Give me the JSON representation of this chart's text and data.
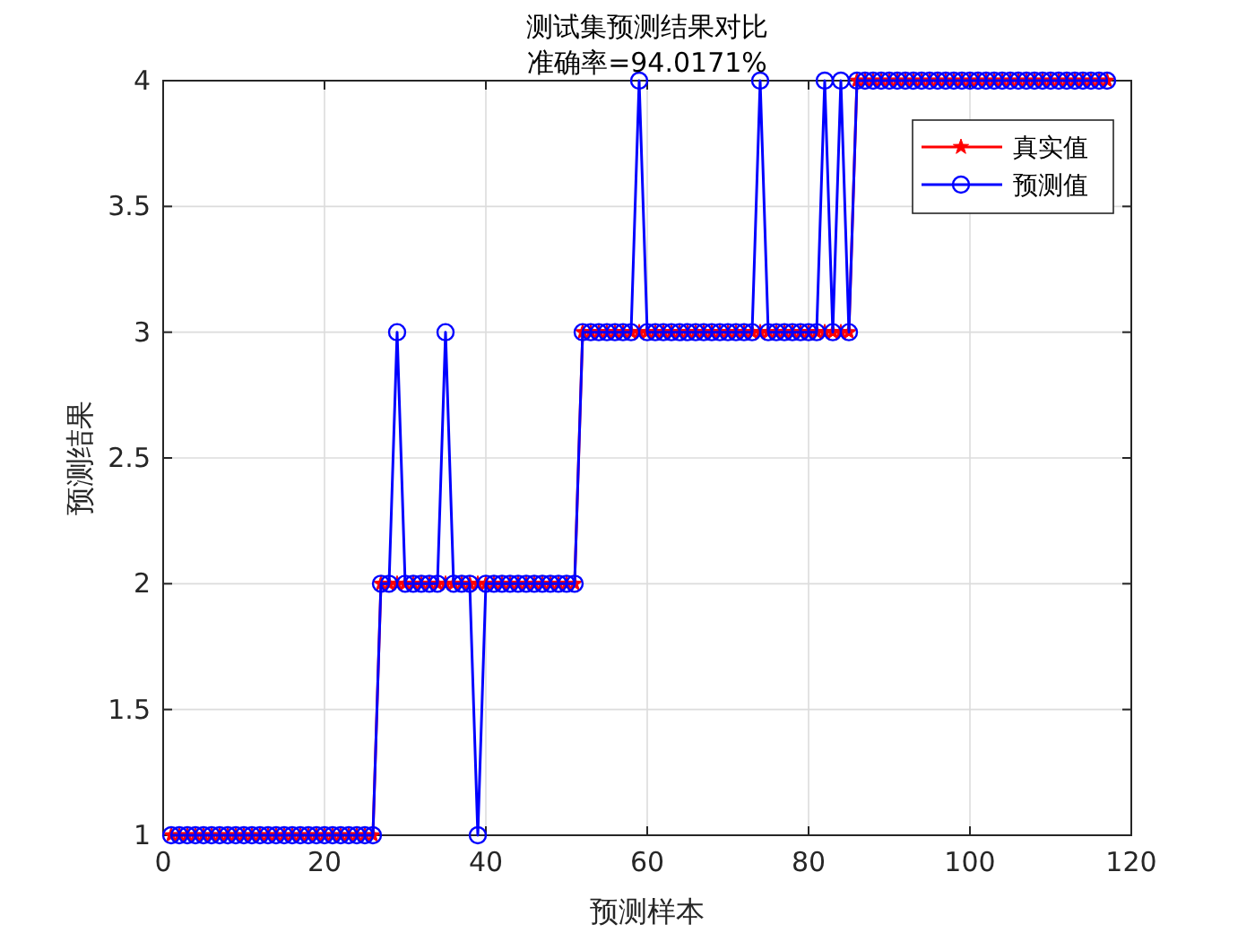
{
  "chart_data": {
    "type": "line",
    "title": "测试集预测结果对比",
    "subtitle": "准确率=94.0171%",
    "xlabel": "预测样本",
    "ylabel": "预测结果",
    "x": [
      1,
      2,
      3,
      4,
      5,
      6,
      7,
      8,
      9,
      10,
      11,
      12,
      13,
      14,
      15,
      16,
      17,
      18,
      19,
      20,
      21,
      22,
      23,
      24,
      25,
      26,
      27,
      28,
      29,
      30,
      31,
      32,
      33,
      34,
      35,
      36,
      37,
      38,
      39,
      40,
      41,
      42,
      43,
      44,
      45,
      46,
      47,
      48,
      49,
      50,
      51,
      52,
      53,
      54,
      55,
      56,
      57,
      58,
      59,
      60,
      61,
      62,
      63,
      64,
      65,
      66,
      67,
      68,
      69,
      70,
      71,
      72,
      73,
      74,
      75,
      76,
      77,
      78,
      79,
      80,
      81,
      82,
      83,
      84,
      85,
      86,
      87,
      88,
      89,
      90,
      91,
      92,
      93,
      94,
      95,
      96,
      97,
      98,
      99,
      100,
      101,
      102,
      103,
      104,
      105,
      106,
      107,
      108,
      109,
      110,
      111,
      112,
      113,
      114,
      115,
      116,
      117
    ],
    "series": [
      {
        "name": "真实值",
        "color": "#ff0000",
        "marker": "star",
        "values": [
          1,
          1,
          1,
          1,
          1,
          1,
          1,
          1,
          1,
          1,
          1,
          1,
          1,
          1,
          1,
          1,
          1,
          1,
          1,
          1,
          1,
          1,
          1,
          1,
          1,
          1,
          2,
          2,
          2,
          2,
          2,
          2,
          2,
          2,
          2,
          2,
          2,
          2,
          2,
          2,
          2,
          2,
          2,
          2,
          2,
          2,
          2,
          2,
          2,
          2,
          2,
          3,
          3,
          3,
          3,
          3,
          3,
          3,
          3,
          3,
          3,
          3,
          3,
          3,
          3,
          3,
          3,
          3,
          3,
          3,
          3,
          3,
          3,
          3,
          3,
          3,
          3,
          3,
          3,
          3,
          3,
          3,
          3,
          3,
          3,
          4,
          4,
          4,
          4,
          4,
          4,
          4,
          4,
          4,
          4,
          4,
          4,
          4,
          4,
          4,
          4,
          4,
          4,
          4,
          4,
          4,
          4,
          4,
          4,
          4,
          4,
          4,
          4,
          4,
          4,
          4,
          4
        ]
      },
      {
        "name": "预测值",
        "color": "#0000ff",
        "marker": "circle",
        "values": [
          1,
          1,
          1,
          1,
          1,
          1,
          1,
          1,
          1,
          1,
          1,
          1,
          1,
          1,
          1,
          1,
          1,
          1,
          1,
          1,
          1,
          1,
          1,
          1,
          1,
          1,
          2,
          2,
          3,
          2,
          2,
          2,
          2,
          2,
          3,
          2,
          2,
          2,
          1,
          2,
          2,
          2,
          2,
          2,
          2,
          2,
          2,
          2,
          2,
          2,
          2,
          3,
          3,
          3,
          3,
          3,
          3,
          3,
          4,
          3,
          3,
          3,
          3,
          3,
          3,
          3,
          3,
          3,
          3,
          3,
          3,
          3,
          3,
          4,
          3,
          3,
          3,
          3,
          3,
          3,
          3,
          4,
          3,
          4,
          3,
          4,
          4,
          4,
          4,
          4,
          4,
          4,
          4,
          4,
          4,
          4,
          4,
          4,
          4,
          4,
          4,
          4,
          4,
          4,
          4,
          4,
          4,
          4,
          4,
          4,
          4,
          4,
          4,
          4,
          4,
          4,
          4
        ]
      }
    ],
    "xlim": [
      0,
      120
    ],
    "xticks": [
      0,
      20,
      40,
      60,
      80,
      100,
      120
    ],
    "ylim": [
      1,
      4
    ],
    "yticks": [
      1,
      1.5,
      2,
      2.5,
      3,
      3.5,
      4
    ],
    "grid": true,
    "legend": "top right",
    "line_style": "solid"
  }
}
